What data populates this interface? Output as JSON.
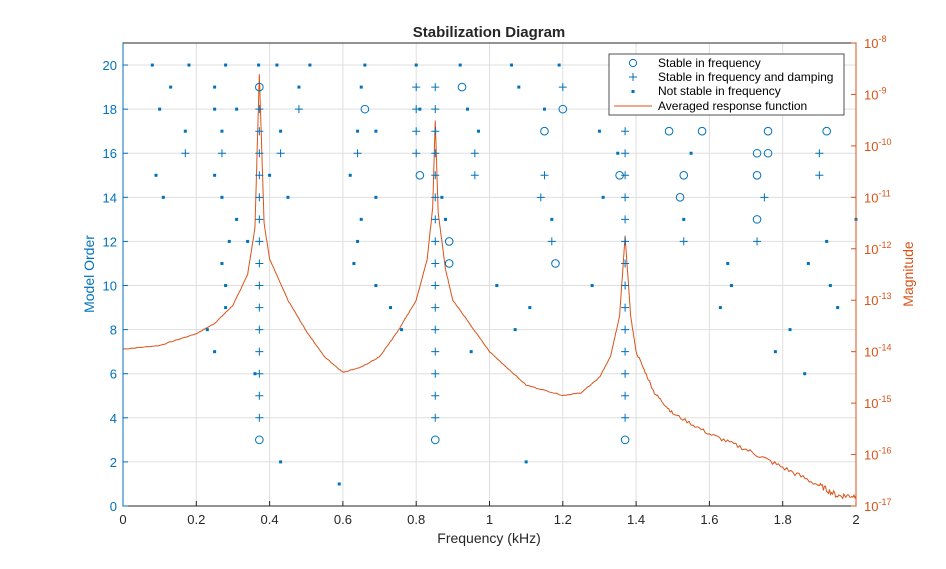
{
  "chart_data": {
    "type": "scatter",
    "title": "Stabilization Diagram",
    "xlabel": "Frequency (kHz)",
    "ylabel_left": "Model Order",
    "ylabel_right": "Magnitude",
    "xlim": [
      0,
      2
    ],
    "ylim_left": [
      0,
      21
    ],
    "ylim_right_log10": [
      -17,
      -8
    ],
    "right_axis_scale": "log",
    "grid": true,
    "legend_position": "top-right",
    "x_ticks": [
      "0",
      "0.2",
      "0.4",
      "0.6",
      "0.8",
      "1",
      "1.2",
      "1.4",
      "1.6",
      "1.8",
      "2"
    ],
    "y_ticks_left": [
      "0",
      "2",
      "4",
      "6",
      "8",
      "10",
      "12",
      "14",
      "16",
      "18",
      "20"
    ],
    "y_ticks_right": [
      {
        "base": "10",
        "exp": "-17"
      },
      {
        "base": "10",
        "exp": "-16"
      },
      {
        "base": "10",
        "exp": "-15"
      },
      {
        "base": "10",
        "exp": "-14"
      },
      {
        "base": "10",
        "exp": "-13"
      },
      {
        "base": "10",
        "exp": "-12"
      },
      {
        "base": "10",
        "exp": "-11"
      },
      {
        "base": "10",
        "exp": "-10"
      },
      {
        "base": "10",
        "exp": "-9"
      },
      {
        "base": "10",
        "exp": "-8"
      }
    ],
    "colors": {
      "markers": "#0072BD",
      "response": "#D95319",
      "axis_left": "#0072BD",
      "axis_right": "#D95319",
      "grid": "#dfdfdf",
      "text": "#262626"
    },
    "series": [
      {
        "name": "Stable in frequency",
        "marker": "circle",
        "points": [
          [
            0.372,
            19
          ],
          [
            0.372,
            3
          ],
          [
            0.66,
            18
          ],
          [
            0.81,
            15
          ],
          [
            0.925,
            19
          ],
          [
            0.89,
            12
          ],
          [
            0.89,
            11
          ],
          [
            0.852,
            3
          ],
          [
            1.2,
            18
          ],
          [
            1.15,
            17
          ],
          [
            1.18,
            11
          ],
          [
            1.355,
            15
          ],
          [
            1.37,
            3
          ],
          [
            1.49,
            17
          ],
          [
            1.58,
            17
          ],
          [
            1.53,
            15
          ],
          [
            1.52,
            14
          ],
          [
            1.76,
            17
          ],
          [
            1.92,
            17
          ],
          [
            1.73,
            16
          ],
          [
            1.76,
            16
          ],
          [
            1.73,
            15
          ],
          [
            1.73,
            13
          ]
        ]
      },
      {
        "name": "Stable in frequency and damping",
        "marker": "plus",
        "points": [
          [
            0.372,
            18
          ],
          [
            0.372,
            17
          ],
          [
            0.372,
            16
          ],
          [
            0.372,
            15
          ],
          [
            0.372,
            14
          ],
          [
            0.372,
            13
          ],
          [
            0.372,
            12
          ],
          [
            0.372,
            11
          ],
          [
            0.372,
            10
          ],
          [
            0.372,
            9
          ],
          [
            0.372,
            8
          ],
          [
            0.372,
            7
          ],
          [
            0.372,
            6
          ],
          [
            0.372,
            5
          ],
          [
            0.372,
            4
          ],
          [
            0.17,
            16
          ],
          [
            0.27,
            16
          ],
          [
            0.43,
            16
          ],
          [
            0.48,
            18
          ],
          [
            0.64,
            16
          ],
          [
            0.8,
            19
          ],
          [
            0.8,
            18
          ],
          [
            0.8,
            17
          ],
          [
            0.8,
            16
          ],
          [
            0.852,
            19
          ],
          [
            0.852,
            18
          ],
          [
            0.852,
            17
          ],
          [
            0.852,
            16
          ],
          [
            0.852,
            15
          ],
          [
            0.852,
            14
          ],
          [
            0.852,
            13
          ],
          [
            0.852,
            12
          ],
          [
            0.852,
            11
          ],
          [
            0.852,
            10
          ],
          [
            0.852,
            9
          ],
          [
            0.852,
            8
          ],
          [
            0.852,
            7
          ],
          [
            0.852,
            6
          ],
          [
            0.852,
            5
          ],
          [
            0.852,
            4
          ],
          [
            0.96,
            16
          ],
          [
            0.96,
            15
          ],
          [
            1.14,
            14
          ],
          [
            1.15,
            15
          ],
          [
            1.17,
            12
          ],
          [
            1.2,
            19
          ],
          [
            1.37,
            17
          ],
          [
            1.37,
            16
          ],
          [
            1.37,
            15
          ],
          [
            1.37,
            14
          ],
          [
            1.37,
            13
          ],
          [
            1.37,
            12
          ],
          [
            1.37,
            11
          ],
          [
            1.37,
            10
          ],
          [
            1.37,
            9
          ],
          [
            1.37,
            8
          ],
          [
            1.37,
            7
          ],
          [
            1.37,
            6
          ],
          [
            1.37,
            5
          ],
          [
            1.37,
            4
          ],
          [
            1.53,
            12
          ],
          [
            1.73,
            12
          ],
          [
            1.75,
            14
          ],
          [
            1.9,
            16
          ],
          [
            1.9,
            15
          ]
        ]
      },
      {
        "name": "Not stable in frequency",
        "marker": "point",
        "points": [
          [
            0.08,
            20
          ],
          [
            0.18,
            20
          ],
          [
            0.28,
            20
          ],
          [
            0.37,
            20
          ],
          [
            0.42,
            20
          ],
          [
            0.51,
            20
          ],
          [
            0.66,
            20
          ],
          [
            0.8,
            20
          ],
          [
            0.92,
            20
          ],
          [
            1.06,
            20
          ],
          [
            1.19,
            20
          ],
          [
            1.37,
            20
          ],
          [
            1.74,
            20
          ],
          [
            1.92,
            20
          ],
          [
            0.13,
            19
          ],
          [
            0.25,
            19
          ],
          [
            0.48,
            19
          ],
          [
            0.65,
            19
          ],
          [
            1.08,
            19
          ],
          [
            0.1,
            18
          ],
          [
            0.25,
            18
          ],
          [
            0.31,
            18
          ],
          [
            0.81,
            18
          ],
          [
            0.94,
            18
          ],
          [
            1.15,
            18
          ],
          [
            0.17,
            17
          ],
          [
            0.27,
            17
          ],
          [
            0.43,
            17
          ],
          [
            0.64,
            17
          ],
          [
            0.69,
            17
          ],
          [
            0.97,
            17
          ],
          [
            1.3,
            17
          ],
          [
            1.35,
            16
          ],
          [
            1.55,
            16
          ],
          [
            0.09,
            15
          ],
          [
            0.25,
            15
          ],
          [
            0.4,
            15
          ],
          [
            0.62,
            15
          ],
          [
            0.11,
            14
          ],
          [
            0.27,
            14
          ],
          [
            0.45,
            14
          ],
          [
            0.69,
            14
          ],
          [
            0.87,
            14
          ],
          [
            1.31,
            14
          ],
          [
            0.31,
            13
          ],
          [
            0.65,
            13
          ],
          [
            0.88,
            13
          ],
          [
            1.17,
            13
          ],
          [
            1.53,
            13
          ],
          [
            2.0,
            13
          ],
          [
            0.29,
            12
          ],
          [
            0.34,
            12
          ],
          [
            0.64,
            12
          ],
          [
            1.92,
            12
          ],
          [
            0.27,
            11
          ],
          [
            0.63,
            11
          ],
          [
            1.65,
            11
          ],
          [
            1.87,
            11
          ],
          [
            0.28,
            10
          ],
          [
            0.69,
            10
          ],
          [
            1.02,
            10
          ],
          [
            1.28,
            10
          ],
          [
            1.66,
            10
          ],
          [
            1.93,
            10
          ],
          [
            0.28,
            9
          ],
          [
            0.73,
            9
          ],
          [
            1.11,
            9
          ],
          [
            1.63,
            9
          ],
          [
            1.95,
            9
          ],
          [
            0.23,
            8
          ],
          [
            0.76,
            8
          ],
          [
            1.07,
            8
          ],
          [
            1.82,
            8
          ],
          [
            0.25,
            7
          ],
          [
            0.95,
            7
          ],
          [
            1.78,
            7
          ],
          [
            0.36,
            6
          ],
          [
            1.86,
            6
          ],
          [
            0.43,
            2
          ],
          [
            1.1,
            2
          ],
          [
            0.59,
            1
          ]
        ]
      },
      {
        "name": "Averaged response function",
        "marker": "line",
        "axis": "right",
        "log10_magnitude": [
          [
            0.0,
            -13.95
          ],
          [
            0.1,
            -13.88
          ],
          [
            0.2,
            -13.65
          ],
          [
            0.25,
            -13.45
          ],
          [
            0.3,
            -13.1
          ],
          [
            0.34,
            -12.5
          ],
          [
            0.36,
            -11.6
          ],
          [
            0.372,
            -8.6
          ],
          [
            0.385,
            -11.5
          ],
          [
            0.4,
            -12.2
          ],
          [
            0.45,
            -13.0
          ],
          [
            0.5,
            -13.6
          ],
          [
            0.55,
            -14.1
          ],
          [
            0.6,
            -14.4
          ],
          [
            0.65,
            -14.3
          ],
          [
            0.7,
            -14.1
          ],
          [
            0.75,
            -13.6
          ],
          [
            0.8,
            -13.0
          ],
          [
            0.83,
            -12.2
          ],
          [
            0.845,
            -11.2
          ],
          [
            0.852,
            -9.5
          ],
          [
            0.86,
            -11.3
          ],
          [
            0.88,
            -12.4
          ],
          [
            0.9,
            -13.0
          ],
          [
            1.0,
            -14.0
          ],
          [
            1.1,
            -14.65
          ],
          [
            1.2,
            -14.85
          ],
          [
            1.25,
            -14.8
          ],
          [
            1.3,
            -14.5
          ],
          [
            1.33,
            -14.1
          ],
          [
            1.355,
            -13.3
          ],
          [
            1.37,
            -11.75
          ],
          [
            1.385,
            -13.3
          ],
          [
            1.4,
            -14.0
          ],
          [
            1.45,
            -14.8
          ],
          [
            1.5,
            -15.2
          ],
          [
            1.6,
            -15.6
          ],
          [
            1.7,
            -15.9
          ],
          [
            1.8,
            -16.25
          ],
          [
            1.9,
            -16.6
          ],
          [
            1.95,
            -16.8
          ],
          [
            2.0,
            -16.8
          ]
        ]
      }
    ]
  }
}
